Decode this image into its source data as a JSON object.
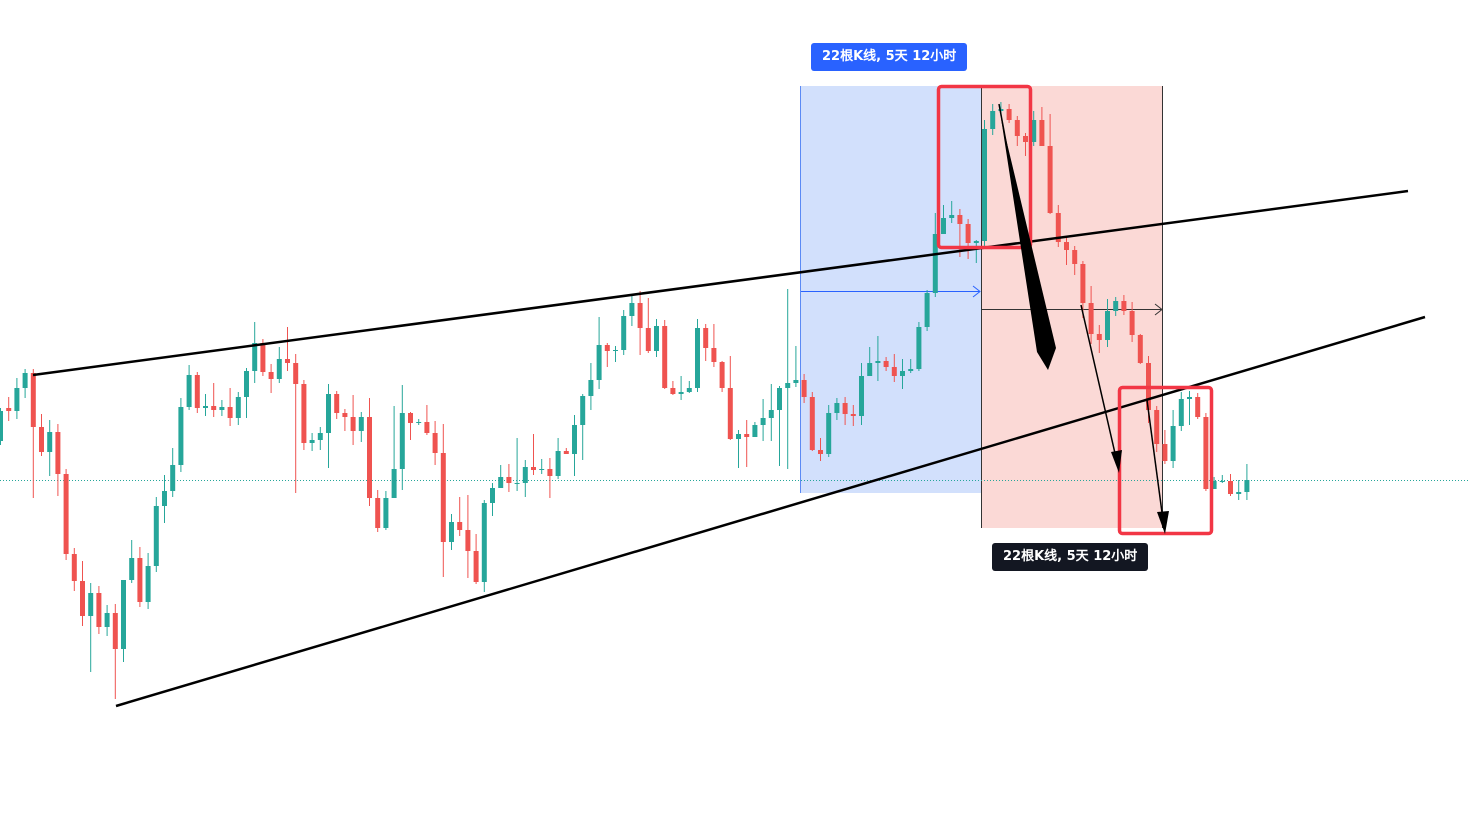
{
  "chart_data": {
    "type": "candlestick",
    "title": "",
    "xlabel": "",
    "ylabel": "",
    "ylim": [
      -696,
      -85
    ],
    "colors": {
      "up": "#26a69a",
      "down": "#ef5350",
      "blue_zone": "#d2e0fc",
      "red_zone": "#fbd9d6",
      "box": "#f23645",
      "line": "#000000"
    },
    "candles": [
      [
        -441,
        -411,
        -408,
        -445
      ],
      [
        -408,
        -411,
        -397,
        -421
      ],
      [
        -411,
        -388,
        -378,
        -419
      ],
      [
        -388,
        -373,
        -369,
        -398
      ],
      [
        -373,
        -427,
        -369,
        -498
      ],
      [
        -427,
        -452,
        -414,
        -456
      ],
      [
        -452,
        -432,
        -420,
        -476
      ],
      [
        -432,
        -474,
        -424,
        -496
      ],
      [
        -474,
        -554,
        -469,
        -560
      ],
      [
        -554,
        -581,
        -548,
        -591
      ],
      [
        -581,
        -616,
        -561,
        -626
      ],
      [
        -616,
        -593,
        -583,
        -672
      ],
      [
        -593,
        -627,
        -586,
        -634
      ],
      [
        -627,
        -613,
        -605,
        -636
      ],
      [
        -613,
        -649,
        -604,
        -699
      ],
      [
        -649,
        -580,
        -580,
        -662
      ],
      [
        -580,
        -558,
        -540,
        -583
      ],
      [
        -558,
        -602,
        -547,
        -607
      ],
      [
        -602,
        -566,
        -553,
        -609
      ],
      [
        -566,
        -506,
        -497,
        -572
      ],
      [
        -506,
        -491,
        -475,
        -523
      ],
      [
        -491,
        -465,
        -448,
        -497
      ],
      [
        -465,
        -407,
        -398,
        -472
      ],
      [
        -407,
        -375,
        -365,
        -410
      ],
      [
        -375,
        -408,
        -372,
        -413
      ],
      [
        -408,
        -406,
        -394,
        -416
      ],
      [
        -406,
        -410,
        -383,
        -417
      ],
      [
        -410,
        -407,
        -400,
        -416
      ],
      [
        -407,
        -418,
        -388,
        -426
      ],
      [
        -418,
        -397,
        -392,
        -425
      ],
      [
        -397,
        -371,
        -368,
        -418
      ],
      [
        -371,
        -343,
        -322,
        -383
      ],
      [
        -343,
        -372,
        -339,
        -376
      ],
      [
        -372,
        -379,
        -364,
        -393
      ],
      [
        -379,
        -359,
        -347,
        -383
      ],
      [
        -359,
        -363,
        -327,
        -371
      ],
      [
        -363,
        -384,
        -354,
        -493
      ],
      [
        -384,
        -443,
        -380,
        -450
      ],
      [
        -443,
        -440,
        -433,
        -451
      ],
      [
        -440,
        -433,
        -427,
        -450
      ],
      [
        -433,
        -394,
        -384,
        -468
      ],
      [
        -394,
        -413,
        -391,
        -419
      ],
      [
        -413,
        -417,
        -409,
        -431
      ],
      [
        -417,
        -431,
        -395,
        -445
      ],
      [
        -431,
        -417,
        -412,
        -442
      ],
      [
        -417,
        -498,
        -398,
        -506
      ],
      [
        -498,
        -528,
        -490,
        -532
      ],
      [
        -528,
        -498,
        -491,
        -530
      ],
      [
        -498,
        -469,
        -406,
        -480
      ],
      [
        -469,
        -413,
        -385,
        -490
      ],
      [
        -413,
        -423,
        -412,
        -440
      ],
      [
        -423,
        -422,
        -419,
        -425
      ],
      [
        -422,
        -433,
        -405,
        -435
      ],
      [
        -433,
        -453,
        -421,
        -465
      ],
      [
        -453,
        -542,
        -424,
        -577
      ],
      [
        -542,
        -522,
        -514,
        -550
      ],
      [
        -522,
        -530,
        -497,
        -536
      ],
      [
        -530,
        -551,
        -495,
        -578
      ],
      [
        -551,
        -582,
        -534,
        -584
      ],
      [
        -582,
        -503,
        -500,
        -592
      ],
      [
        -503,
        -488,
        -483,
        -516
      ],
      [
        -488,
        -477,
        -465,
        -486
      ],
      [
        -477,
        -483,
        -464,
        -492
      ],
      [
        -483,
        -483,
        -438,
        -491
      ],
      [
        -483,
        -467,
        -460,
        -497
      ],
      [
        -467,
        -470,
        -434,
        -475
      ],
      [
        -470,
        -469,
        -459,
        -474
      ],
      [
        -469,
        -476,
        -458,
        -498
      ],
      [
        -476,
        -451,
        -438,
        -479
      ],
      [
        -451,
        -454,
        -448,
        -454
      ],
      [
        -454,
        -425,
        -415,
        -476
      ],
      [
        -425,
        -396,
        -394,
        -460
      ],
      [
        -396,
        -380,
        -363,
        -410
      ],
      [
        -380,
        -345,
        -317,
        -389
      ],
      [
        -345,
        -351,
        -343,
        -367
      ],
      [
        -351,
        -350,
        -346,
        -362
      ],
      [
        -350,
        -316,
        -310,
        -355
      ],
      [
        -316,
        -303,
        -295,
        -326
      ],
      [
        -303,
        -328,
        -291,
        -355
      ],
      [
        -328,
        -351,
        -298,
        -353
      ],
      [
        -351,
        -326,
        -319,
        -357
      ],
      [
        -326,
        -388,
        -320,
        -389
      ],
      [
        -388,
        -394,
        -381,
        -395
      ],
      [
        -394,
        -392,
        -376,
        -400
      ],
      [
        -392,
        -388,
        -381,
        -393
      ],
      [
        -388,
        -328,
        -319,
        -392
      ],
      [
        -328,
        -348,
        -324,
        -361
      ],
      [
        -348,
        -362,
        -324,
        -367
      ],
      [
        -362,
        -388,
        -361,
        -392
      ],
      [
        -388,
        -439,
        -356,
        -440
      ],
      [
        -439,
        -434,
        -430,
        -468
      ],
      [
        -434,
        -437,
        -420,
        -467
      ],
      [
        -437,
        -425,
        -422,
        -436
      ],
      [
        -425,
        -418,
        -399,
        -441
      ],
      [
        -418,
        -410,
        -384,
        -441
      ],
      [
        -410,
        -388,
        -386,
        -466
      ],
      [
        -388,
        -383,
        -289,
        -469
      ],
      [
        -383,
        -380,
        -346,
        -387
      ],
      [
        -380,
        -397,
        -374,
        -403
      ],
      [
        -397,
        -450,
        -392,
        -451
      ],
      [
        -450,
        -454,
        -438,
        -461
      ],
      [
        -454,
        -413,
        -405,
        -457
      ],
      [
        -413,
        -403,
        -398,
        -420
      ],
      [
        -403,
        -414,
        -397,
        -425
      ],
      [
        -414,
        -416,
        -405,
        -426
      ],
      [
        -416,
        -376,
        -363,
        -425
      ],
      [
        -376,
        -363,
        -347,
        -375
      ],
      [
        -363,
        -361,
        -336,
        -381
      ],
      [
        -361,
        -367,
        -357,
        -371
      ],
      [
        -367,
        -376,
        -354,
        -382
      ],
      [
        -376,
        -371,
        -359,
        -389
      ],
      [
        -371,
        -369,
        -359,
        -373
      ],
      [
        -369,
        -327,
        -322,
        -371
      ],
      [
        -327,
        -293,
        -290,
        -331
      ],
      [
        -293,
        -234,
        -213,
        -297
      ],
      [
        -234,
        -218,
        -205,
        -234
      ],
      [
        -218,
        -215,
        -201,
        -223
      ],
      [
        -215,
        -224,
        -209,
        -257
      ],
      [
        -224,
        -243,
        -219,
        -259
      ],
      [
        -243,
        -241,
        -240,
        -263
      ],
      [
        -241,
        -129,
        -120,
        -246
      ],
      [
        -129,
        -111,
        -104,
        -135
      ],
      [
        -111,
        -109,
        -102,
        -116
      ],
      [
        -109,
        -120,
        -104,
        -123
      ],
      [
        -120,
        -136,
        -116,
        -146
      ],
      [
        -136,
        -142,
        -133,
        -156
      ],
      [
        -142,
        -120,
        -111,
        -146
      ],
      [
        -120,
        -146,
        -107,
        -146
      ],
      [
        -146,
        -213,
        -114,
        -214
      ],
      [
        -213,
        -242,
        -205,
        -247
      ],
      [
        -242,
        -250,
        -236,
        -265
      ],
      [
        -250,
        -264,
        -246,
        -275
      ],
      [
        -264,
        -303,
        -261,
        -318
      ],
      [
        -303,
        -334,
        -286,
        -344
      ],
      [
        -334,
        -340,
        -325,
        -353
      ],
      [
        -340,
        -311,
        -299,
        -347
      ],
      [
        -311,
        -301,
        -297,
        -316
      ],
      [
        -301,
        -311,
        -295,
        -315
      ],
      [
        -311,
        -335,
        -302,
        -342
      ],
      [
        -335,
        -363,
        -334,
        -364
      ],
      [
        -363,
        -410,
        -356,
        -423
      ],
      [
        -410,
        -444,
        -406,
        -452
      ],
      [
        -444,
        -461,
        -430,
        -464
      ],
      [
        -461,
        -426,
        -410,
        -468
      ],
      [
        -426,
        -399,
        -392,
        -431
      ],
      [
        -399,
        -397,
        -391,
        -425
      ],
      [
        -397,
        -417,
        -393,
        -419
      ],
      [
        -417,
        -489,
        -413,
        -491
      ],
      [
        -489,
        -481,
        -477,
        -489
      ],
      [
        -481,
        -481,
        -475,
        -483
      ],
      [
        -481,
        -494,
        -474,
        -496
      ],
      [
        -494,
        -492,
        -480,
        -500
      ],
      [
        -492,
        -480,
        -464,
        -500
      ]
    ],
    "ranges": [
      {
        "label": "22根K线, 5天 12小时",
        "bars": 22
      },
      {
        "label": "22根K线, 5天 12小时",
        "bars": 22
      }
    ]
  }
}
